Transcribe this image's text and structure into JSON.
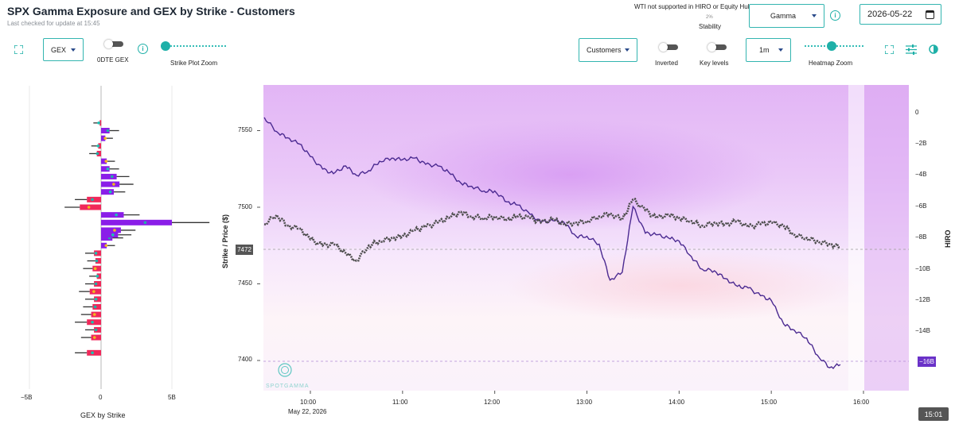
{
  "header": {
    "title": "SPX Gamma Exposure and GEX by Strike - Customers",
    "last_checked": "Last checked for update at 15:45",
    "tooltip": "WTI not supported in HIRO or Equity Hub",
    "stability_value": "2%",
    "stability_label": "Stability",
    "metric_select": "Gamma",
    "date": "2026-05-22"
  },
  "left_controls": {
    "gex_select": "GEX",
    "odte_label": "0DTE GEX",
    "strike_zoom_label": "Strike Plot Zoom",
    "strike_zoom_level": 0.0
  },
  "right_controls": {
    "customers_select": "Customers",
    "inverted_label": "Inverted",
    "key_levels_label": "Key levels",
    "interval_select": "1m",
    "heatmap_zoom_label": "Heatmap Zoom",
    "heatmap_zoom_level": 0.45
  },
  "gex_panel": {
    "x_ticks": [
      "−5B",
      "0",
      "5B"
    ],
    "x_label": "GEX by Strike"
  },
  "main_chart": {
    "y_label": "Strike / Price ($)",
    "y_ticks": [
      "7550",
      "7500",
      "7450",
      "7400"
    ],
    "price_badge": "7472",
    "hiro_label": "HIRO",
    "hiro_ticks": [
      "0",
      "−2B",
      "−4B",
      "−6B",
      "−8B",
      "−10B",
      "−12B",
      "−14B",
      "−16B"
    ],
    "hiro_badge": "−16B",
    "x_ticks": [
      "10:00",
      "11:00",
      "12:00",
      "13:00",
      "14:00",
      "15:00",
      "16:00"
    ],
    "date_label": "May 22, 2026",
    "watermark": "SPOTGAMMA",
    "time_badge": "15:01"
  },
  "chart_data": {
    "type": "line",
    "x_range": [
      "09:30",
      "16:00"
    ],
    "ylim_price": [
      7380,
      7580
    ],
    "ylim_hiro_billion": [
      -18,
      1
    ],
    "series": [
      {
        "name": "",
        "axis": "hiro",
        "color": "#4b2a91",
        "x": [
          "09:30",
          "09:38",
          "09:45",
          "09:53",
          "10:00",
          "10:08",
          "10:15",
          "10:23",
          "10:30",
          "10:38",
          "10:45",
          "10:53",
          "11:00",
          "11:08",
          "11:15",
          "11:23",
          "11:30",
          "11:38",
          "11:45",
          "11:53",
          "12:00",
          "12:08",
          "12:15",
          "12:23",
          "12:30",
          "12:38",
          "12:45",
          "12:53",
          "13:00",
          "13:08",
          "13:15",
          "13:23",
          "13:30",
          "13:38",
          "13:45",
          "13:53",
          "14:00",
          "14:08",
          "14:15",
          "14:23",
          "14:30",
          "14:38",
          "14:45",
          "14:53",
          "15:00",
          "15:08",
          "15:15",
          "15:23",
          "15:30",
          "15:38",
          "15:45"
        ],
        "values": [
          -0.3,
          -1.2,
          -1.6,
          -2.0,
          -2.8,
          -3.6,
          -3.9,
          -3.4,
          -4.0,
          -3.7,
          -3.1,
          -2.9,
          -3.0,
          -2.9,
          -3.3,
          -3.4,
          -3.8,
          -4.5,
          -4.7,
          -5.0,
          -5.0,
          -5.7,
          -5.9,
          -6.5,
          -7.0,
          -6.9,
          -7.0,
          -7.9,
          -7.9,
          -8.4,
          -10.7,
          -10.2,
          -6.0,
          -7.7,
          -7.8,
          -8.0,
          -8.2,
          -9.2,
          -10.0,
          -10.1,
          -10.6,
          -11.1,
          -11.2,
          -11.7,
          -12.0,
          -13.5,
          -13.9,
          -14.4,
          -15.5,
          -16.3,
          -16.1
        ]
      },
      {
        "name": "",
        "axis": "price",
        "color": "#4d4d4d",
        "x": [
          "09:30",
          "09:38",
          "09:45",
          "09:53",
          "10:00",
          "10:08",
          "10:15",
          "10:23",
          "10:30",
          "10:38",
          "10:45",
          "10:53",
          "11:00",
          "11:08",
          "11:15",
          "11:23",
          "11:30",
          "11:38",
          "11:45",
          "11:53",
          "12:00",
          "12:08",
          "12:15",
          "12:23",
          "12:30",
          "12:38",
          "12:45",
          "12:53",
          "13:00",
          "13:08",
          "13:15",
          "13:23",
          "13:30",
          "13:38",
          "13:45",
          "13:53",
          "14:00",
          "14:08",
          "14:15",
          "14:23",
          "14:30",
          "14:38",
          "14:45",
          "14:53",
          "15:00",
          "15:08",
          "15:15",
          "15:23",
          "15:30",
          "15:38",
          "15:45"
        ],
        "values": [
          7489,
          7495,
          7488,
          7486,
          7479,
          7475,
          7476,
          7470,
          7465,
          7475,
          7478,
          7480,
          7481,
          7485,
          7487,
          7490,
          7493,
          7497,
          7494,
          7493,
          7494,
          7492,
          7494,
          7493,
          7490,
          7492,
          7489,
          7490,
          7491,
          7494,
          7496,
          7492,
          7505,
          7498,
          7493,
          7495,
          7493,
          7491,
          7488,
          7490,
          7489,
          7491,
          7487,
          7489,
          7490,
          7488,
          7482,
          7480,
          7478,
          7476,
          7474
        ]
      }
    ],
    "gex_by_strike": {
      "unit": "B",
      "xlim": [
        -5.5,
        5.5
      ],
      "strikes": [
        7405,
        7415,
        7420,
        7425,
        7430,
        7435,
        7440,
        7445,
        7450,
        7455,
        7460,
        7465,
        7470,
        7475,
        7480,
        7482,
        7485,
        7490,
        7495,
        7500,
        7505,
        7510,
        7515,
        7520,
        7525,
        7530,
        7535,
        7540,
        7545,
        7550,
        7555
      ],
      "values": [
        -1.0,
        -0.7,
        -0.5,
        -1.0,
        -0.7,
        -0.6,
        -0.5,
        -0.8,
        -0.5,
        -0.3,
        -0.6,
        -0.4,
        -0.5,
        0.4,
        0.8,
        1.2,
        1.4,
        5.0,
        1.6,
        -1.5,
        -1.0,
        0.9,
        1.3,
        1.1,
        0.6,
        0.4,
        -0.3,
        -0.2,
        0.3,
        0.6,
        -0.1
      ]
    }
  }
}
